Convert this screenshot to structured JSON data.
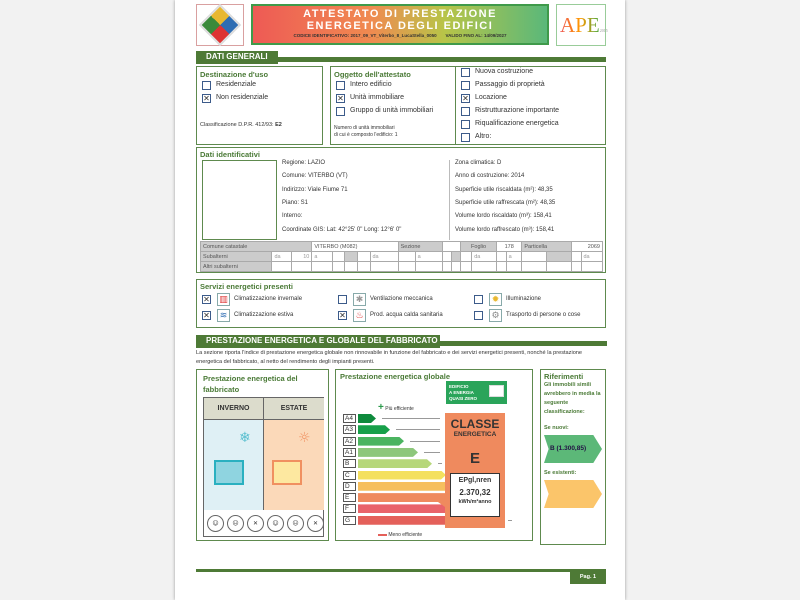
{
  "header": {
    "title_line1": "ATTESTATO DI PRESTAZIONE",
    "title_line2": "ENERGETICA DEGLI EDIFICI",
    "code_label": "CODICE IDENTIFICATIVO:",
    "code": "2017_09_VT_Viterbo_8_LucaStella_0050",
    "valid_label": "VALIDO FINO AL:",
    "valid": "14/09/2027",
    "ape_logo": "APE",
    "ape_sub": "2015"
  },
  "dati_generali": {
    "title": "DATI GENERALI",
    "destinazione": {
      "title": "Destinazione d'uso",
      "options": [
        {
          "label": "Residenziale",
          "checked": false
        },
        {
          "label": "Non residenziale",
          "checked": true
        }
      ],
      "classificazione_label": "Classificazione D.P.R. 412/93:",
      "classificazione": "E2"
    },
    "oggetto": {
      "title": "Oggetto dell'attestato",
      "options": [
        {
          "label": "Intero edificio",
          "checked": false
        },
        {
          "label": "Unità immobiliare",
          "checked": true
        },
        {
          "label": "Gruppo di unità immobiliari",
          "checked": false
        }
      ],
      "numero_line1": "Numero di unità immobiliari",
      "numero_line2": "di cui è composto l'edificio:",
      "numero": "1"
    },
    "motivo": [
      {
        "label": "Nuova costruzione",
        "checked": false
      },
      {
        "label": "Passaggio di proprietà",
        "checked": false
      },
      {
        "label": "Locazione",
        "checked": true
      },
      {
        "label": "Ristrutturazione importante",
        "checked": false
      },
      {
        "label": "Riqualificazione energetica",
        "checked": false
      },
      {
        "label": "Altro:",
        "checked": false
      }
    ]
  },
  "dati_identificativi": {
    "title": "Dati identificativi",
    "left": [
      "Regione: LAZIO",
      "Comune: VITERBO (VT)",
      "Indirizzo: Viale Fiume 71",
      "Piano: S1",
      "Interno:",
      "Coordinate GIS: Lat: 42°25' 0\" Long: 12°6' 0\""
    ],
    "right": [
      "Zona climatica: D",
      "Anno di costruzione: 2014",
      "Superficie utile riscaldata (m²): 48,35",
      "Superficie utile raffrescata (m²): 48,35",
      "Volume lordo riscaldato (m³): 158,41",
      "Volume lordo raffrescato (m³): 158,41"
    ],
    "catasto": {
      "comune_label": "Comune catastale",
      "comune": "VITERBO (M082)",
      "sezione_label": "Sezione",
      "sezione": "",
      "foglio_label": "Foglio",
      "foglio": "178",
      "particella_label": "Particella",
      "particella": "2069",
      "subalterni_label": "Subalterni",
      "da": "da",
      "a": "a",
      "sub_da": "10",
      "altri_label": "Altri subalterni"
    }
  },
  "servizi": {
    "title": "Servizi energetici presenti",
    "items": [
      {
        "label": "Climatizzazione invernale",
        "checked": true,
        "icon": "radiator-icon"
      },
      {
        "label": "Ventilazione meccanica",
        "checked": false,
        "icon": "fan-icon"
      },
      {
        "label": "Illuminazione",
        "checked": false,
        "icon": "bulb-icon"
      },
      {
        "label": "Climatizzazione estiva",
        "checked": true,
        "icon": "air-conditioner-icon"
      },
      {
        "label": "Prod. acqua calda sanitaria",
        "checked": true,
        "icon": "tap-icon"
      },
      {
        "label": "Trasporto di persone o cose",
        "checked": false,
        "icon": "gear-icon"
      }
    ]
  },
  "prestazione": {
    "title": "PRESTAZIONE ENERGETICA E GLOBALE DEL FABBRICATO",
    "description": "La sezione riporta l'indice di prestazione energetica globale non rinnovabile in funzione del fabbricato e dei servizi energetici presenti, nonché la prestazione energetica del fabbricato, al netto del rendimento degli impianti presenti.",
    "fabbricato": {
      "title_line1": "Prestazione energetica del",
      "title_line2": "fabbricato",
      "inverno": "INVERNO",
      "estate": "ESTATE"
    },
    "globale": {
      "title": "Prestazione energetica globale",
      "piu": "Più efficiente",
      "meno": "Meno efficiente",
      "classes": [
        {
          "label": "A4",
          "color": "#0e8a3c"
        },
        {
          "label": "A3",
          "color": "#17a04a"
        },
        {
          "label": "A2",
          "color": "#4bb460"
        },
        {
          "label": "A1",
          "color": "#8dc77b"
        },
        {
          "label": "B",
          "color": "#b6d77a"
        },
        {
          "label": "C",
          "color": "#f4e05e"
        },
        {
          "label": "D",
          "color": "#f6bf5e"
        },
        {
          "label": "E",
          "color": "#ef8a5e"
        },
        {
          "label": "F",
          "color": "#e9636a"
        },
        {
          "label": "G",
          "color": "#e4605a"
        }
      ],
      "current_class": "E",
      "nzeb_line1": "EDIFICIO",
      "nzeb_line2": "A ENERGIA",
      "nzeb_line3": "QUASI ZERO",
      "classe_line1": "CLASSE",
      "classe_line2": "ENERGETICA",
      "ep_label": "EPgl,nren",
      "ep_value": "2.370,32",
      "ep_unit": "kWh/m²anno"
    },
    "riferimenti": {
      "title": "Riferimenti",
      "text": "Gli immobili simili avrebbero in media la seguente classificazione:",
      "nuovi_label": "Se nuovi:",
      "nuovi_value": "B (1.300,85)",
      "esistenti_label": "Se esistenti:",
      "esistenti_value": ""
    }
  },
  "footer": {
    "page": "Pag. 1"
  }
}
